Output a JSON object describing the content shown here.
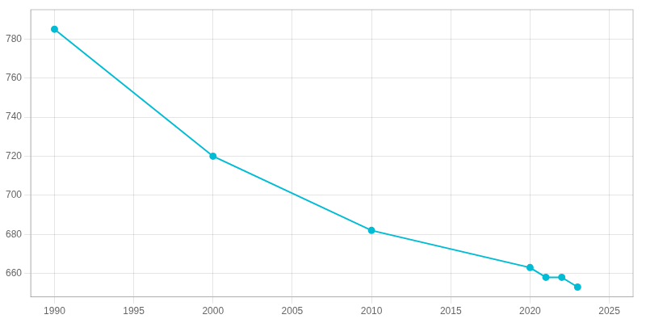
{
  "chart_data": {
    "type": "line",
    "x": [
      1990,
      2000,
      2010,
      2020,
      2021,
      2022,
      2023
    ],
    "values": [
      785,
      720,
      682,
      663,
      658,
      658,
      653
    ],
    "color": "#00BCD4",
    "marker": "circle",
    "xlim": [
      1988.5,
      2026.5
    ],
    "ylim": [
      648,
      795
    ],
    "xticks": [
      1990,
      1995,
      2000,
      2005,
      2010,
      2015,
      2020,
      2025
    ],
    "yticks": [
      660,
      680,
      700,
      720,
      740,
      760,
      780
    ],
    "grid": true
  }
}
